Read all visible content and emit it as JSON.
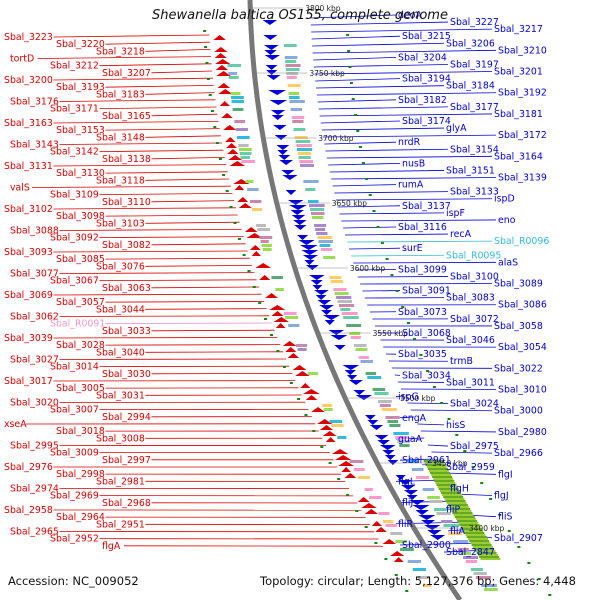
{
  "title": "Shewanella baltica OS155, complete genome",
  "footer": {
    "accession": "Accession: NC_009052",
    "summary": "Topology: circular; Length: 5,127,376 bp; Genes: 4,448"
  },
  "colors": {
    "forward_strand": "#0000dd",
    "reverse_strand": "#dd0000",
    "rna_forward": "#33bbdd",
    "rna_reverse": "#ee99cc",
    "backbone": "#777777",
    "gc_dots": "#118811"
  },
  "ticks": [
    "3800 kbp",
    "3750 kbp",
    "3700 kbp",
    "3650 kbp",
    "3600 kbp",
    "3550 kbp",
    "3500 kbp",
    "3450 kbp",
    "3400 kbp"
  ],
  "left_labels": [
    "Sbal_3223",
    "Sbal_3220",
    "Sbal_3218",
    "tortD",
    "Sbal_3212",
    "Sbal_3207",
    "Sbal_3200",
    "Sbal_3193",
    "Sbal_3183",
    "Sbal_3176",
    "Sbal_3171",
    "Sbal_3165",
    "Sbal_3163",
    "Sbal_3153",
    "Sbal_3148",
    "Sbal_3143",
    "Sbal_3142",
    "Sbal_3138",
    "Sbal_3131",
    "Sbal_3130",
    "Sbal_3118",
    "valS",
    "Sbal_3109",
    "Sbal_3110",
    "Sbal_3102",
    "Sbal_3098",
    "Sbal_3103",
    "Sbal_3088",
    "Sbal_3092",
    "Sbal_3082",
    "Sbal_3093",
    "Sbal_3085",
    "Sbal_3076",
    "Sbal_3077",
    "Sbal_3067",
    "Sbal_3063",
    "Sbal_3069",
    "Sbal_3057",
    "Sbal_3044",
    "Sbal_3062",
    "Sbal_R0091",
    "Sbal_3033",
    "Sbal_3039",
    "Sbal_3028",
    "Sbal_3040",
    "Sbal_3027",
    "Sbal_3014",
    "Sbal_3030",
    "Sbal_3017",
    "Sbal_3005",
    "Sbal_3031",
    "Sbal_3020",
    "Sbal_3007",
    "Sbal_2994",
    "xseA",
    "Sbal_3018",
    "Sbal_3008",
    "Sbal_2995",
    "Sbal_3009",
    "Sbal_2997",
    "Sbal_2976",
    "Sbal_2998",
    "Sbal_2981",
    "Sbal_2974",
    "Sbal_2969",
    "Sbal_2968",
    "Sbal_2958",
    "Sbal_2964",
    "Sbal_2951",
    "Sbal_2965",
    "Sbal_2952",
    "flgA"
  ],
  "right_labels": [
    "deoA",
    "Sbal_3227",
    "Sbal_3217",
    "Sbal_3215",
    "Sbal_3206",
    "Sbal_3210",
    "Sbal_3204",
    "Sbal_3197",
    "Sbal_3201",
    "Sbal_3194",
    "Sbal_3184",
    "Sbal_3192",
    "Sbal_3182",
    "Sbal_3177",
    "Sbal_3181",
    "Sbal_3174",
    "glyA",
    "Sbal_3172",
    "nrdR",
    "Sbal_3154",
    "Sbal_3164",
    "nusB",
    "Sbal_3151",
    "Sbal_3139",
    "rumA",
    "Sbal_3133",
    "ispD",
    "Sbal_3137",
    "ispF",
    "eno",
    "Sbal_3116",
    "recA",
    "Sbal_R0096",
    "surE",
    "Sbal_R0095",
    "alaS",
    "Sbal_3099",
    "Sbal_3100",
    "Sbal_3089",
    "Sbal_3091",
    "Sbal_3083",
    "Sbal_3086",
    "Sbal_3073",
    "Sbal_3072",
    "Sbal_3058",
    "Sbal_3068",
    "Sbal_3046",
    "Sbal_3054",
    "Sbal_3035",
    "trmB",
    "Sbal_3022",
    "Sbal_3034",
    "Sbal_3011",
    "Sbal_3010",
    "ispG",
    "Sbal_3024",
    "Sbal_3000",
    "engA",
    "hisS",
    "Sbal_2980",
    "guaA",
    "Sbal_2975",
    "Sbal_2966",
    "Sbal_2961",
    "Sbal_2959",
    "flgI",
    "flgL",
    "flgH",
    "flgJ",
    "fliJ",
    "fliP",
    "fliS",
    "fliR",
    "fliA",
    "Sbal_2907",
    "Sbal_2900",
    "Sbal_2847"
  ]
}
